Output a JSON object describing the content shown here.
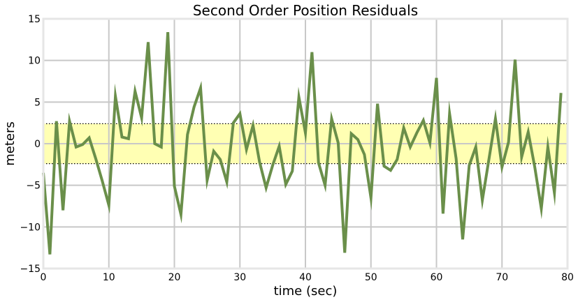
{
  "chart_data": {
    "type": "line",
    "title": "Second Order Position Residuals",
    "xlabel": "time (sec)",
    "ylabel": "meters",
    "xlim": [
      0,
      80
    ],
    "ylim": [
      -15,
      15
    ],
    "x_ticks": [
      0,
      10,
      20,
      30,
      40,
      50,
      60,
      70,
      80
    ],
    "y_ticks": [
      -15,
      -10,
      -5,
      0,
      5,
      10,
      15
    ],
    "grid": true,
    "band": {
      "lower": -2.4,
      "upper": 2.4,
      "fill_color": "#ffffb3",
      "line_style": "dotted"
    },
    "series_color": "#6a8f4a",
    "series": [
      {
        "x": [
          0,
          1,
          2,
          3,
          4,
          5,
          6,
          7,
          8,
          9,
          10,
          11,
          12,
          13,
          14,
          15,
          16,
          17,
          18,
          19,
          20,
          21,
          22,
          23,
          24,
          25,
          26,
          27,
          28,
          29,
          30,
          31,
          32,
          33,
          34,
          35,
          36,
          37,
          38,
          39,
          40,
          41,
          42,
          43,
          44,
          45,
          46,
          47,
          48,
          49,
          50,
          51,
          52,
          53,
          54,
          55,
          56,
          57,
          58,
          59,
          60,
          61,
          62,
          63,
          64,
          65,
          66,
          67,
          68,
          69,
          70,
          71,
          72,
          73,
          74,
          75,
          76,
          77,
          78,
          79
        ],
        "values": [
          -3.5,
          -13.3,
          2.7,
          -8.0,
          2.7,
          -0.4,
          -0.1,
          0.7,
          -1.8,
          -4.5,
          -7.4,
          5.7,
          0.8,
          0.6,
          6.3,
          3.1,
          12.2,
          0.0,
          -0.4,
          13.4,
          -5.1,
          -8.5,
          1.1,
          4.4,
          6.7,
          -4.4,
          -0.9,
          -1.9,
          -4.6,
          2.5,
          3.6,
          -0.7,
          2.2,
          -2.2,
          -5.3,
          -2.6,
          -0.3,
          -4.9,
          -3.3,
          5.6,
          1.3,
          11.0,
          -2.3,
          -5.0,
          3.0,
          0.1,
          -13.1,
          1.2,
          0.5,
          -1.3,
          -6.5,
          4.8,
          -2.7,
          -3.2,
          -1.9,
          1.9,
          -0.4,
          1.3,
          2.8,
          0.1,
          7.9,
          -8.4,
          3.6,
          -1.8,
          -11.5,
          -2.6,
          -0.4,
          -6.8,
          -1.9,
          3.0,
          -2.8,
          0.2,
          10.1,
          -1.6,
          1.4,
          -2.8,
          -7.8,
          -0.4,
          -5.9,
          6.1
        ]
      }
    ]
  }
}
